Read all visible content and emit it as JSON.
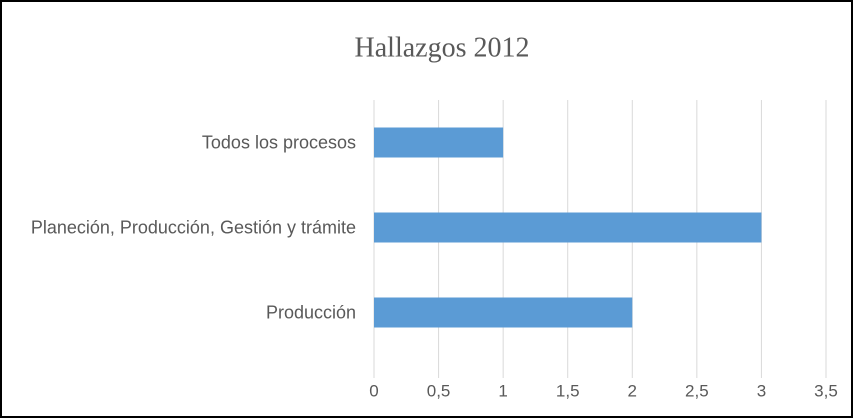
{
  "chart_data": {
    "type": "barh",
    "title": "Hallazgos 2012",
    "categories": [
      "Todos los procesos",
      "Planeción, Producción, Gestión y trámite",
      "Producción"
    ],
    "values": [
      1,
      3,
      2
    ],
    "color": "#5b9bd5",
    "xlim": [
      0,
      3.5
    ],
    "xticks": [
      0,
      {
        "value": 0.5,
        "label": "0,5"
      },
      1,
      {
        "value": 1.5,
        "label": "1,5"
      },
      2,
      {
        "value": 2.5,
        "label": "2,5"
      },
      3,
      {
        "value": 3.5,
        "label": "3,5"
      }
    ],
    "grid": true
  }
}
